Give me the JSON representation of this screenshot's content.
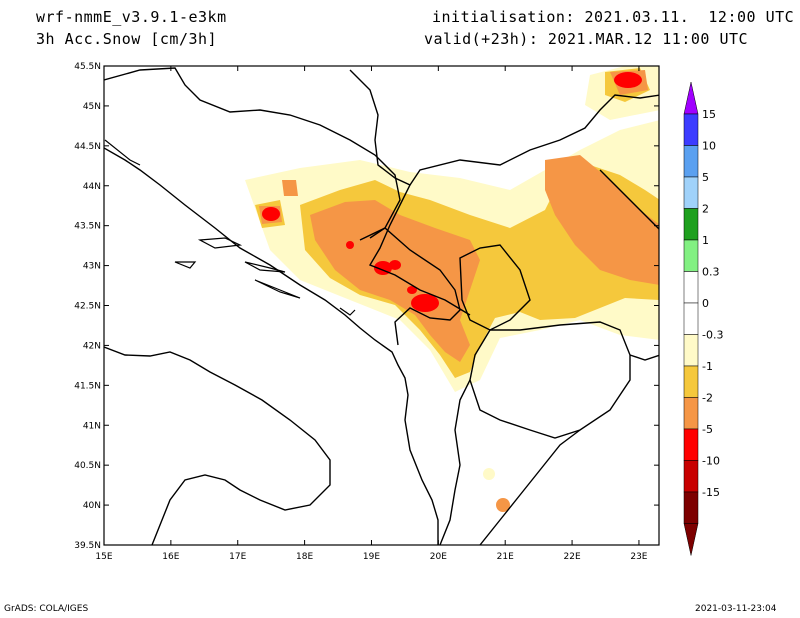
{
  "header": {
    "model": "wrf-nmmE_v3.9.1-e3km",
    "variable": "3h Acc.Snow [cm/3h]",
    "init": "initialisation: 2021.03.11.  12:00 UTC",
    "valid": "valid(+23h): 2021.MAR.12 11:00 UTC"
  },
  "axes": {
    "lon_ticks": [
      "15E",
      "16E",
      "17E",
      "18E",
      "19E",
      "20E",
      "21E",
      "22E",
      "23E"
    ],
    "lat_ticks": [
      "45.5N",
      "45N",
      "44.5N",
      "44N",
      "43.5N",
      "43N",
      "42.5N",
      "42N",
      "41.5N",
      "41N",
      "40.5N",
      "40N",
      "39.5N"
    ],
    "lon_range": [
      15,
      23.3
    ],
    "lat_range": [
      39.5,
      45.5
    ]
  },
  "colorbar": {
    "labels": [
      "15",
      "10",
      "5",
      "2",
      "1",
      "0.3",
      "0",
      "-0.3",
      "-1",
      "-2",
      "-5",
      "-10",
      "-15"
    ],
    "colors": [
      "#3c3cff",
      "#5aa0f0",
      "#a0d2fa",
      "#1ea01e",
      "#82f082",
      "#ffffff",
      "#ffffff",
      "#fffac8",
      "#f5c83c",
      "#f59646",
      "#ff0000",
      "#c80000",
      "#7d0000"
    ],
    "top_color": "#a000ff"
  },
  "footer": {
    "left": "GrADS: COLA/IGES",
    "right": "2021-03-11-23:04"
  }
}
